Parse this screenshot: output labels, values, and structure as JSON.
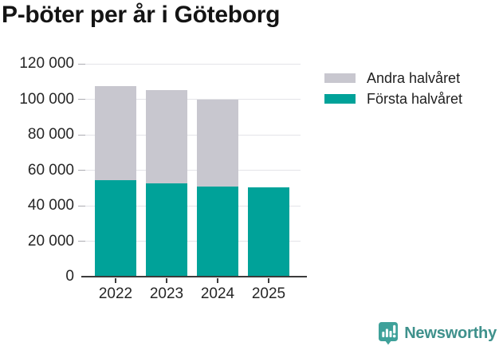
{
  "chart_data": {
    "type": "bar",
    "stacked": true,
    "title": "P-böter per år i Göteborg",
    "categories": [
      "2022",
      "2023",
      "2024",
      "2025"
    ],
    "series": [
      {
        "name": "Första halvåret",
        "color": "#00A299",
        "values": [
          54500,
          52500,
          51000,
          50500
        ]
      },
      {
        "name": "Andra halvåret",
        "color": "#C8C7CF",
        "values": [
          53000,
          52500,
          49000,
          0
        ]
      }
    ],
    "legend_order": [
      "Andra halvåret",
      "Första halvåret"
    ],
    "legend_position": "right",
    "ylim": [
      0,
      120000
    ],
    "yticks": [
      0,
      20000,
      40000,
      60000,
      80000,
      100000,
      120000
    ],
    "ytick_labels": [
      "0",
      "20 000",
      "40 000",
      "60 000",
      "80 000",
      "100 000",
      "120 000"
    ],
    "xlabel": "",
    "ylabel": "",
    "grid": true
  },
  "colors": {
    "first_half": "#00A299",
    "second_half": "#C8C7CF",
    "gridline": "#E4E4E8",
    "axis_line": "#3B3B3B",
    "logo_teal": "#3FA19A",
    "brand_text": "#3F918C"
  },
  "footer": {
    "brand": "Newsworthy"
  }
}
